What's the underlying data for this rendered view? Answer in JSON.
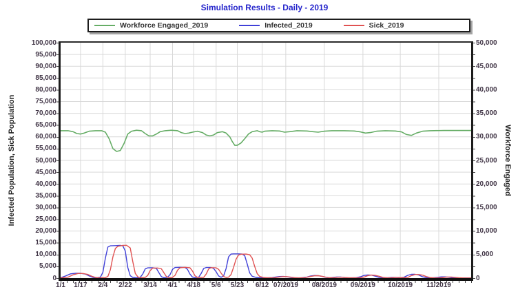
{
  "chart_data": {
    "type": "line",
    "title": "Simulation Results - Daily - 2019",
    "legend_position": "top",
    "grid": true,
    "plot_bg": "#ffffff",
    "grid_color": "#d9d9d9",
    "title_color": "#2323cb",
    "x_axis": {
      "tick_labels": [
        "1/1",
        "1/17",
        "2/4",
        "2/22",
        "3/14",
        "4/1",
        "4/18",
        "5/6",
        "5/23",
        "6/12",
        "07/2019",
        "08/2019",
        "09/2019",
        "10/2019",
        "11/2019"
      ],
      "tick_days": [
        0,
        16,
        34,
        52,
        72,
        90,
        107,
        125,
        142,
        162,
        181,
        212,
        243,
        273,
        304
      ],
      "axis_end_day": 330
    },
    "y_left": {
      "label": "Infected Population, Sick Population",
      "min": 0,
      "max": 100000,
      "step": 5000,
      "tick_labels": [
        "100,000",
        "95,000",
        "90,000",
        "85,000",
        "80,000",
        "75,000",
        "70,000",
        "65,000",
        "60,000",
        "55,000",
        "50,000",
        "45,000",
        "40,000",
        "35,000",
        "30,000",
        "25,000",
        "20,000",
        "15,000",
        "10,000",
        "5,000",
        "0"
      ]
    },
    "y_right": {
      "label": "Workforce Engaged",
      "min": 0,
      "max": 50000,
      "step": 5000,
      "tick_labels": [
        "50,000",
        "45,000",
        "40,000",
        "35,000",
        "30,000",
        "25,000",
        "20,000",
        "15,000",
        "10,000",
        "5,000",
        "0"
      ]
    },
    "series": [
      {
        "name": "Workforce Engaged_2019",
        "color": "#66ad66",
        "axis": "right",
        "width": 1.6,
        "points": [
          [
            0,
            31300
          ],
          [
            6,
            31300
          ],
          [
            10,
            31100
          ],
          [
            13,
            30700
          ],
          [
            16,
            30600
          ],
          [
            19,
            30800
          ],
          [
            23,
            31200
          ],
          [
            28,
            31300
          ],
          [
            33,
            31300
          ],
          [
            36,
            31000
          ],
          [
            39,
            29600
          ],
          [
            42,
            27500
          ],
          [
            45,
            26900
          ],
          [
            48,
            27100
          ],
          [
            51,
            28600
          ],
          [
            54,
            30600
          ],
          [
            57,
            31200
          ],
          [
            61,
            31400
          ],
          [
            65,
            31300
          ],
          [
            68,
            30700
          ],
          [
            71,
            30200
          ],
          [
            74,
            30200
          ],
          [
            77,
            30600
          ],
          [
            80,
            31100
          ],
          [
            84,
            31300
          ],
          [
            89,
            31400
          ],
          [
            94,
            31300
          ],
          [
            97,
            30900
          ],
          [
            100,
            30700
          ],
          [
            103,
            30800
          ],
          [
            106,
            31000
          ],
          [
            110,
            31200
          ],
          [
            114,
            30900
          ],
          [
            117,
            30400
          ],
          [
            120,
            30200
          ],
          [
            123,
            30400
          ],
          [
            126,
            30900
          ],
          [
            130,
            31100
          ],
          [
            133,
            30800
          ],
          [
            136,
            30000
          ],
          [
            138,
            29000
          ],
          [
            140,
            28200
          ],
          [
            142,
            28200
          ],
          [
            145,
            28700
          ],
          [
            148,
            29600
          ],
          [
            151,
            30600
          ],
          [
            154,
            31100
          ],
          [
            158,
            31300
          ],
          [
            160,
            31100
          ],
          [
            162,
            31000
          ],
          [
            164,
            31200
          ],
          [
            170,
            31300
          ],
          [
            176,
            31250
          ],
          [
            180,
            31000
          ],
          [
            184,
            31100
          ],
          [
            190,
            31300
          ],
          [
            198,
            31250
          ],
          [
            203,
            31100
          ],
          [
            207,
            31000
          ],
          [
            212,
            31200
          ],
          [
            218,
            31300
          ],
          [
            228,
            31300
          ],
          [
            236,
            31250
          ],
          [
            241,
            31050
          ],
          [
            245,
            30800
          ],
          [
            249,
            30900
          ],
          [
            254,
            31200
          ],
          [
            261,
            31300
          ],
          [
            269,
            31250
          ],
          [
            274,
            31050
          ],
          [
            278,
            30500
          ],
          [
            282,
            30300
          ],
          [
            286,
            30800
          ],
          [
            291,
            31200
          ],
          [
            297,
            31300
          ],
          [
            308,
            31350
          ],
          [
            318,
            31350
          ],
          [
            330,
            31350
          ]
        ]
      },
      {
        "name": "Infected_2019",
        "color": "#4040d8",
        "axis": "left",
        "width": 1.4,
        "points": [
          [
            0,
            150
          ],
          [
            4,
            900
          ],
          [
            8,
            1800
          ],
          [
            12,
            2050
          ],
          [
            16,
            2050
          ],
          [
            20,
            1700
          ],
          [
            23,
            900
          ],
          [
            26,
            300
          ],
          [
            29,
            150
          ],
          [
            32,
            400
          ],
          [
            34,
            2500
          ],
          [
            36,
            8500
          ],
          [
            38,
            13200
          ],
          [
            40,
            13700
          ],
          [
            44,
            13800
          ],
          [
            48,
            13900
          ],
          [
            50,
            13700
          ],
          [
            52,
            11500
          ],
          [
            54,
            4500
          ],
          [
            56,
            1000
          ],
          [
            58,
            300
          ],
          [
            61,
            130
          ],
          [
            64,
            350
          ],
          [
            66,
            1700
          ],
          [
            68,
            3900
          ],
          [
            70,
            4350
          ],
          [
            74,
            4400
          ],
          [
            77,
            4100
          ],
          [
            79,
            2300
          ],
          [
            81,
            600
          ],
          [
            83,
            180
          ],
          [
            86,
            350
          ],
          [
            88,
            1500
          ],
          [
            90,
            3700
          ],
          [
            92,
            4500
          ],
          [
            96,
            4600
          ],
          [
            100,
            4500
          ],
          [
            102,
            3700
          ],
          [
            104,
            1700
          ],
          [
            106,
            450
          ],
          [
            108,
            180
          ],
          [
            111,
            400
          ],
          [
            113,
            2000
          ],
          [
            115,
            4100
          ],
          [
            117,
            4500
          ],
          [
            121,
            4500
          ],
          [
            123,
            4100
          ],
          [
            125,
            2700
          ],
          [
            127,
            900
          ],
          [
            129,
            350
          ],
          [
            131,
            900
          ],
          [
            133,
            4000
          ],
          [
            135,
            9000
          ],
          [
            137,
            10200
          ],
          [
            139,
            10300
          ],
          [
            143,
            10300
          ],
          [
            146,
            10200
          ],
          [
            148,
            9500
          ],
          [
            150,
            6000
          ],
          [
            152,
            2200
          ],
          [
            154,
            800
          ],
          [
            157,
            300
          ],
          [
            161,
            130
          ],
          [
            166,
            120
          ],
          [
            170,
            220
          ],
          [
            173,
            480
          ],
          [
            176,
            680
          ],
          [
            179,
            700
          ],
          [
            182,
            550
          ],
          [
            185,
            300
          ],
          [
            188,
            140
          ],
          [
            193,
            110
          ],
          [
            198,
            400
          ],
          [
            201,
            920
          ],
          [
            204,
            1100
          ],
          [
            207,
            1050
          ],
          [
            210,
            750
          ],
          [
            213,
            350
          ],
          [
            216,
            160
          ],
          [
            219,
            280
          ],
          [
            222,
            430
          ],
          [
            225,
            430
          ],
          [
            228,
            260
          ],
          [
            231,
            130
          ],
          [
            237,
            160
          ],
          [
            241,
            560
          ],
          [
            244,
            1180
          ],
          [
            247,
            1320
          ],
          [
            250,
            1260
          ],
          [
            253,
            820
          ],
          [
            256,
            320
          ],
          [
            259,
            140
          ],
          [
            263,
            160
          ],
          [
            266,
            310
          ],
          [
            269,
            310
          ],
          [
            272,
            190
          ],
          [
            276,
            360
          ],
          [
            279,
            1180
          ],
          [
            282,
            1620
          ],
          [
            285,
            1620
          ],
          [
            288,
            1280
          ],
          [
            291,
            560
          ],
          [
            294,
            200
          ],
          [
            299,
            120
          ],
          [
            303,
            330
          ],
          [
            306,
            520
          ],
          [
            309,
            520
          ],
          [
            312,
            360
          ],
          [
            315,
            160
          ],
          [
            320,
            90
          ],
          [
            330,
            70
          ]
        ]
      },
      {
        "name": "Sick_2019",
        "color": "#e05252",
        "axis": "left",
        "width": 1.4,
        "points": [
          [
            0,
            80
          ],
          [
            6,
            400
          ],
          [
            10,
            1400
          ],
          [
            14,
            1950
          ],
          [
            18,
            1950
          ],
          [
            22,
            1550
          ],
          [
            25,
            780
          ],
          [
            28,
            280
          ],
          [
            31,
            130
          ],
          [
            36,
            200
          ],
          [
            38,
            700
          ],
          [
            40,
            3500
          ],
          [
            42,
            9000
          ],
          [
            44,
            12600
          ],
          [
            46,
            13500
          ],
          [
            50,
            13900
          ],
          [
            53,
            13950
          ],
          [
            56,
            12800
          ],
          [
            58,
            7000
          ],
          [
            60,
            2000
          ],
          [
            62,
            550
          ],
          [
            64,
            190
          ],
          [
            68,
            280
          ],
          [
            70,
            1100
          ],
          [
            72,
            3200
          ],
          [
            74,
            4250
          ],
          [
            78,
            4300
          ],
          [
            81,
            3950
          ],
          [
            83,
            2300
          ],
          [
            85,
            700
          ],
          [
            87,
            200
          ],
          [
            90,
            280
          ],
          [
            92,
            1200
          ],
          [
            94,
            3400
          ],
          [
            96,
            4400
          ],
          [
            100,
            4600
          ],
          [
            104,
            4400
          ],
          [
            106,
            3000
          ],
          [
            108,
            1000
          ],
          [
            110,
            300
          ],
          [
            115,
            320
          ],
          [
            117,
            1700
          ],
          [
            119,
            3900
          ],
          [
            121,
            4450
          ],
          [
            125,
            4350
          ],
          [
            127,
            3700
          ],
          [
            129,
            2100
          ],
          [
            131,
            700
          ],
          [
            133,
            300
          ],
          [
            135,
            400
          ],
          [
            137,
            1500
          ],
          [
            139,
            4500
          ],
          [
            141,
            8000
          ],
          [
            143,
            9800
          ],
          [
            145,
            10150
          ],
          [
            149,
            10200
          ],
          [
            152,
            9900
          ],
          [
            154,
            8500
          ],
          [
            156,
            5000
          ],
          [
            158,
            1900
          ],
          [
            160,
            700
          ],
          [
            163,
            250
          ],
          [
            167,
            110
          ],
          [
            172,
            150
          ],
          [
            176,
            500
          ],
          [
            179,
            640
          ],
          [
            182,
            620
          ],
          [
            185,
            420
          ],
          [
            188,
            200
          ],
          [
            191,
            100
          ],
          [
            196,
            150
          ],
          [
            200,
            600
          ],
          [
            204,
            960
          ],
          [
            207,
            1020
          ],
          [
            210,
            800
          ],
          [
            213,
            400
          ],
          [
            216,
            180
          ],
          [
            220,
            200
          ],
          [
            223,
            360
          ],
          [
            226,
            360
          ],
          [
            229,
            240
          ],
          [
            232,
            110
          ],
          [
            240,
            110
          ],
          [
            244,
            430
          ],
          [
            247,
            1060
          ],
          [
            250,
            1280
          ],
          [
            253,
            1180
          ],
          [
            256,
            780
          ],
          [
            259,
            330
          ],
          [
            262,
            140
          ],
          [
            266,
            130
          ],
          [
            269,
            270
          ],
          [
            272,
            270
          ],
          [
            275,
            170
          ],
          [
            279,
            250
          ],
          [
            282,
            1050
          ],
          [
            285,
            1530
          ],
          [
            288,
            1530
          ],
          [
            291,
            1250
          ],
          [
            294,
            630
          ],
          [
            297,
            230
          ],
          [
            300,
            110
          ],
          [
            305,
            100
          ],
          [
            308,
            280
          ],
          [
            311,
            470
          ],
          [
            314,
            470
          ],
          [
            317,
            310
          ],
          [
            320,
            150
          ],
          [
            325,
            70
          ],
          [
            330,
            60
          ]
        ]
      }
    ]
  }
}
